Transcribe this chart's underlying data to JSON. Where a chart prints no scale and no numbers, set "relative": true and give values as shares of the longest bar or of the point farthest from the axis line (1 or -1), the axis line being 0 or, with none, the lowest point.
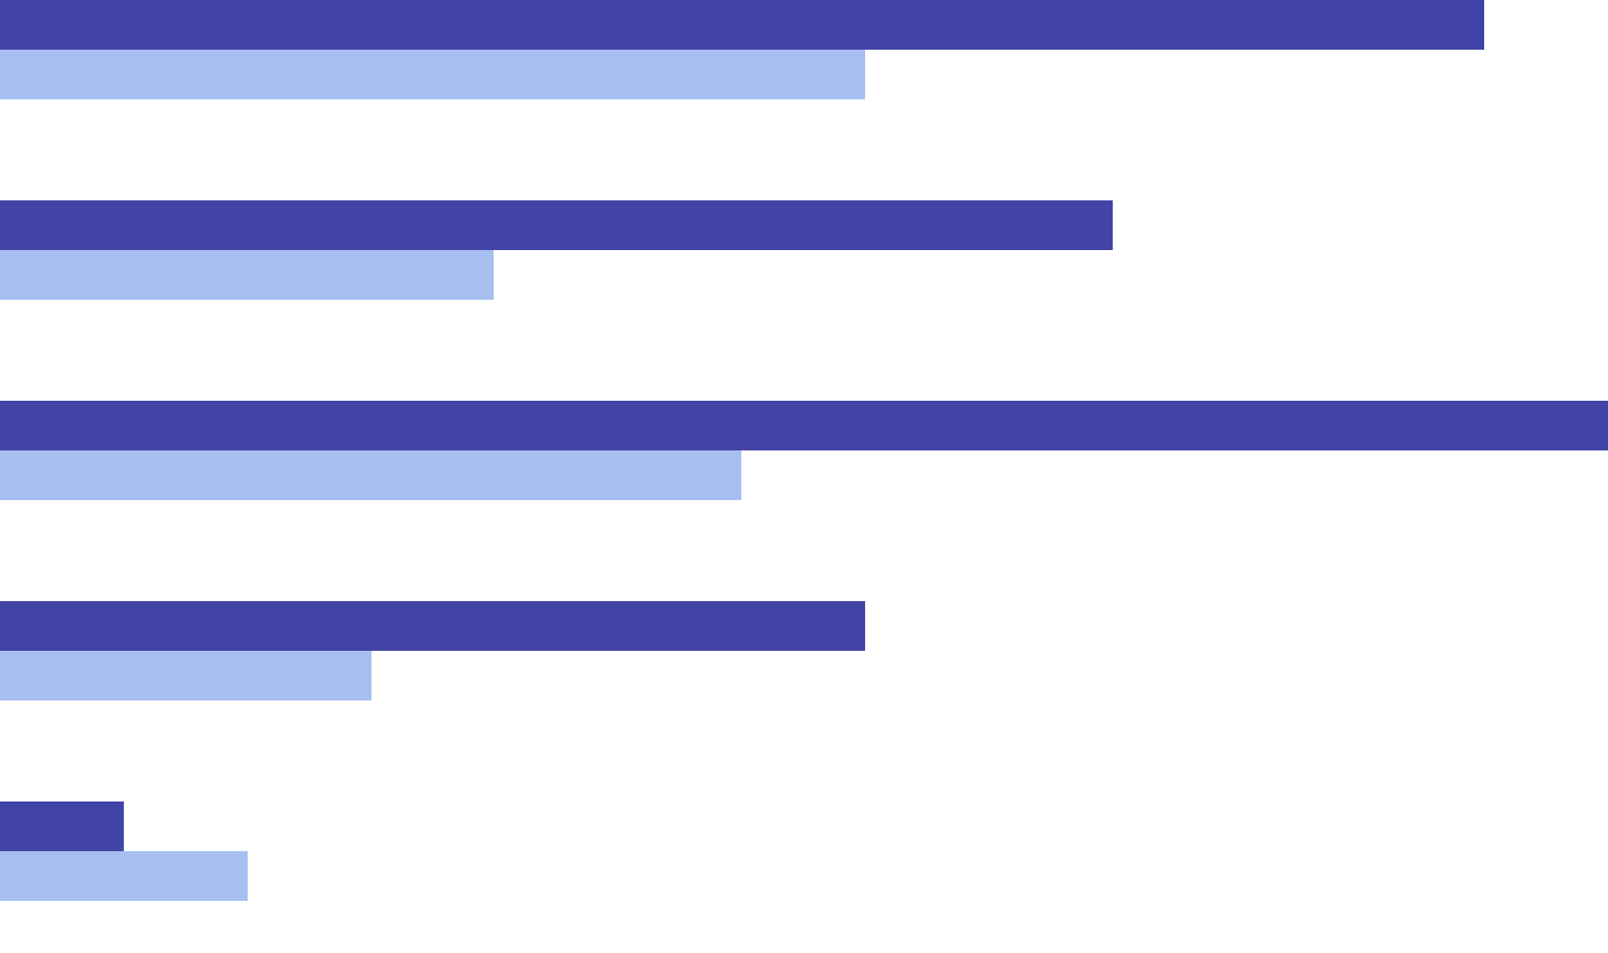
{
  "chart_data": {
    "type": "bar",
    "orientation": "horizontal",
    "relative": true,
    "categories": [
      null,
      null,
      null,
      null,
      null
    ],
    "series": [
      {
        "color": "#4243a6",
        "values": [
          0.923,
          0.692,
          1,
          0.538,
          0.077
        ]
      },
      {
        "color": "#a7bff0",
        "values": [
          0.538,
          0.307,
          0.461,
          0.231,
          0.154
        ]
      }
    ]
  }
}
